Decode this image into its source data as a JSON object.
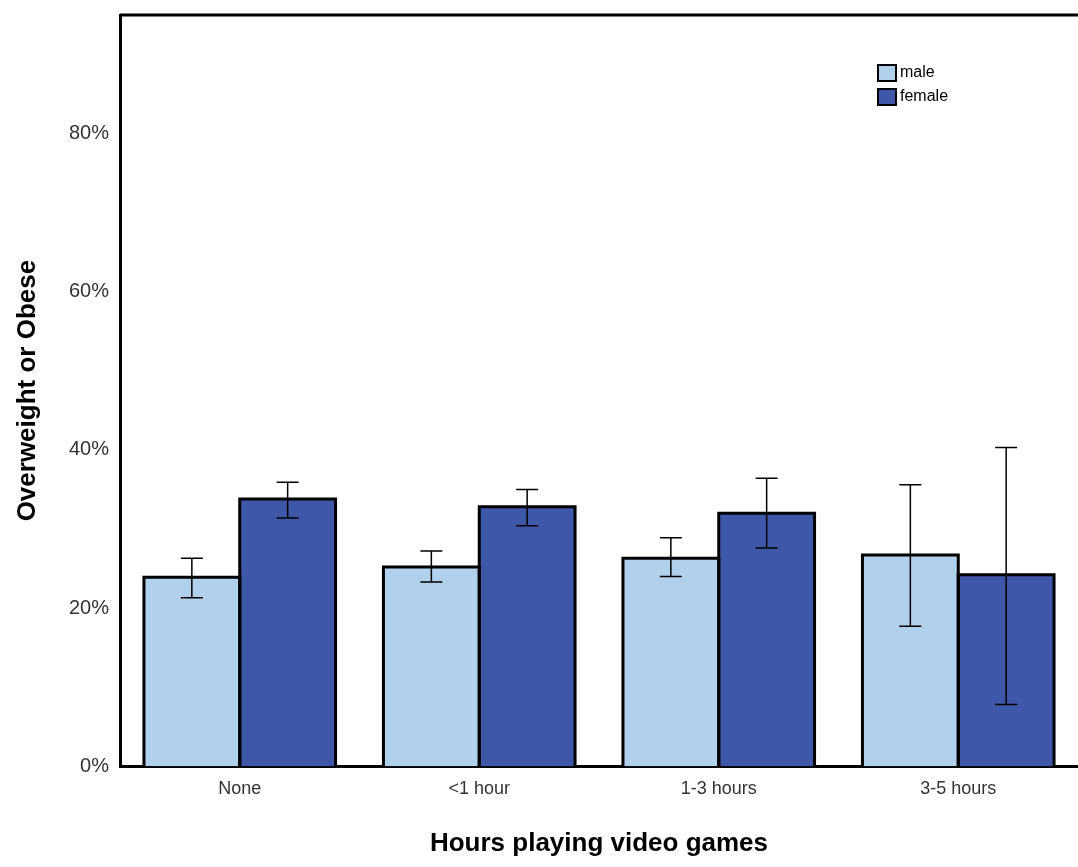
{
  "chart_data": {
    "type": "bar",
    "xlabel": "Hours playing video games",
    "ylabel": "Overweight or Obese",
    "categories": [
      "None",
      "<1 hour",
      "1-3 hours",
      "3-5 hours"
    ],
    "series": [
      {
        "name": "male",
        "color": "#b0d0ec",
        "values": [
          23.9,
          25.2,
          26.3,
          26.7
        ],
        "errors": [
          [
            21.3,
            26.3
          ],
          [
            23.3,
            27.2
          ],
          [
            24.0,
            28.9
          ],
          [
            17.7,
            35.6
          ]
        ]
      },
      {
        "name": "female",
        "color": "#3f57a8",
        "values": [
          33.8,
          32.8,
          32.0,
          24.2
        ],
        "errors": [
          [
            31.4,
            35.9
          ],
          [
            30.4,
            35.0
          ],
          [
            27.6,
            36.4
          ],
          [
            7.8,
            40.3
          ]
        ]
      }
    ],
    "ylim": [
      0,
      95
    ],
    "yticks": [
      {
        "value": 0,
        "label": "0%"
      },
      {
        "value": 20,
        "label": "20%"
      },
      {
        "value": 40,
        "label": "40%"
      },
      {
        "value": 60,
        "label": "60%"
      },
      {
        "value": 80,
        "label": "80%"
      }
    ],
    "grid": false,
    "legend": "top right"
  }
}
